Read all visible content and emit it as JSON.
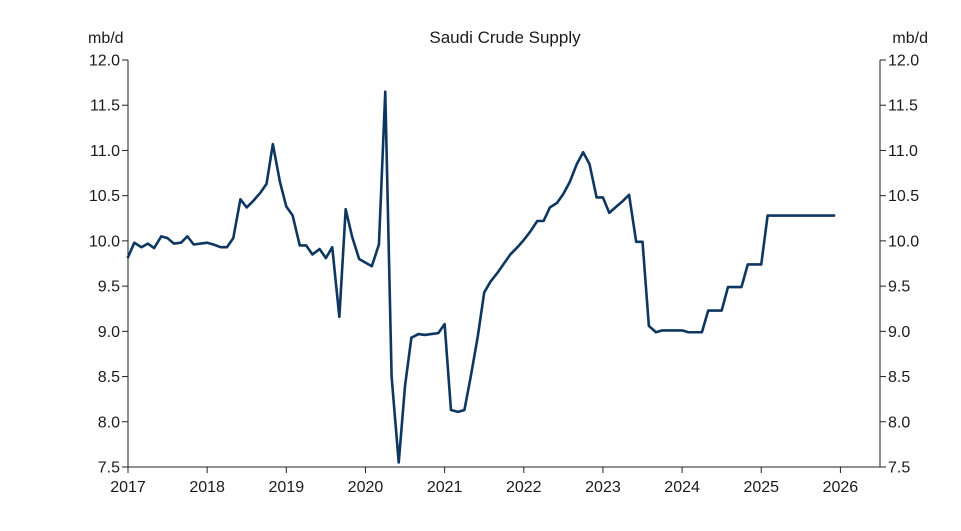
{
  "chart_data": {
    "type": "line",
    "title": "Saudi Crude Supply",
    "left_unit": "mb/d",
    "right_unit": "mb/d",
    "xlabel": "",
    "ylabel": "",
    "ylim": [
      7.5,
      12.0
    ],
    "xlim": [
      2017,
      2026.5
    ],
    "grid": false,
    "legend": "none",
    "line_color": "#0d3660",
    "y_ticks": [
      "7.5",
      "8.0",
      "8.5",
      "9.0",
      "9.5",
      "10.0",
      "10.5",
      "11.0",
      "11.5",
      "12.0"
    ],
    "x_ticks": [
      "2017",
      "2018",
      "2019",
      "2020",
      "2021",
      "2022",
      "2023",
      "2024",
      "2025",
      "2026"
    ],
    "series": [
      {
        "x": [
          2017.0,
          2017.08,
          2017.17,
          2017.25,
          2017.33,
          2017.42,
          2017.5,
          2017.58,
          2017.67,
          2017.75,
          2017.83,
          2017.92,
          2018.0,
          2018.08,
          2018.17,
          2018.25,
          2018.33,
          2018.42,
          2018.5,
          2018.58,
          2018.67,
          2018.75,
          2018.83,
          2018.92,
          2019.0,
          2019.08,
          2019.17,
          2019.25,
          2019.33,
          2019.42,
          2019.5,
          2019.58,
          2019.67,
          2019.75,
          2019.83,
          2019.92,
          2020.0,
          2020.08,
          2020.17,
          2020.25,
          2020.33,
          2020.42,
          2020.5,
          2020.58,
          2020.67,
          2020.75,
          2020.83,
          2020.92,
          2021.0,
          2021.08,
          2021.17,
          2021.25,
          2021.33,
          2021.42,
          2021.5,
          2021.58,
          2021.67,
          2021.75,
          2021.83,
          2021.92,
          2022.0,
          2022.08,
          2022.17,
          2022.25,
          2022.33,
          2022.42,
          2022.5,
          2022.58,
          2022.67,
          2022.75,
          2022.83,
          2022.92,
          2023.0,
          2023.08,
          2023.17,
          2023.25,
          2023.33,
          2023.42,
          2023.5,
          2023.58,
          2023.67,
          2023.75,
          2023.83,
          2023.92,
          2024.0,
          2024.08,
          2024.17,
          2024.25,
          2024.33,
          2024.42,
          2024.5,
          2024.58,
          2024.67,
          2024.75,
          2024.83,
          2024.92,
          2025.0,
          2025.08,
          2025.17,
          2025.25,
          2025.33,
          2025.42,
          2025.5,
          2025.58,
          2025.67,
          2025.75,
          2025.83,
          2025.92
        ],
        "y": [
          9.82,
          9.98,
          9.93,
          9.97,
          9.92,
          10.05,
          10.03,
          9.97,
          9.98,
          10.05,
          9.96,
          9.97,
          9.98,
          9.96,
          9.93,
          9.93,
          10.03,
          10.46,
          10.37,
          10.44,
          10.53,
          10.63,
          11.07,
          10.65,
          10.38,
          10.28,
          9.95,
          9.95,
          9.85,
          9.91,
          9.81,
          9.93,
          9.16,
          10.35,
          10.05,
          9.8,
          9.76,
          9.72,
          9.96,
          11.65,
          8.5,
          7.55,
          8.4,
          8.93,
          8.97,
          8.96,
          8.97,
          8.98,
          9.08,
          8.13,
          8.11,
          8.13,
          8.5,
          8.95,
          9.43,
          9.55,
          9.65,
          9.75,
          9.85,
          9.93,
          10.01,
          10.1,
          10.22,
          10.22,
          10.37,
          10.42,
          10.52,
          10.65,
          10.85,
          10.98,
          10.85,
          10.48,
          10.48,
          10.31,
          10.38,
          10.44,
          10.51,
          9.99,
          9.99,
          9.06,
          8.99,
          9.01,
          9.01,
          9.01,
          9.01,
          8.99,
          8.99,
          8.99,
          9.23,
          9.23,
          9.23,
          9.49,
          9.49,
          9.49,
          9.74,
          9.74,
          9.74,
          10.28,
          10.28,
          10.28,
          10.28,
          10.28,
          10.28,
          10.28,
          10.28,
          10.28,
          10.28,
          10.28
        ]
      }
    ]
  }
}
